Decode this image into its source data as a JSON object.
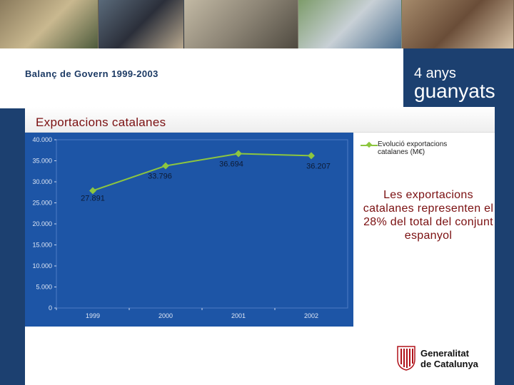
{
  "header": {
    "subtitle": "Balanç de Govern 1999-2003",
    "years_text": "4 anys",
    "won_text": "guanyats"
  },
  "photos": [
    {
      "name": "market-photo",
      "colors": [
        "#8a7a5c",
        "#c9b88f",
        "#4d5b3c"
      ]
    },
    {
      "name": "police-photo",
      "colors": [
        "#5a6a7a",
        "#2b2f3a",
        "#b9a98f"
      ]
    },
    {
      "name": "street-photo",
      "colors": [
        "#c2b9a4",
        "#8c8475",
        "#4f4a40"
      ]
    },
    {
      "name": "stadium-photo",
      "colors": [
        "#7d9c6a",
        "#c8d0d6",
        "#4b6e8e"
      ]
    },
    {
      "name": "students-photo",
      "colors": [
        "#a58a6b",
        "#6a4d38",
        "#d8c4a8"
      ]
    }
  ],
  "section": {
    "title": "Exportacions catalanes"
  },
  "chart_data": {
    "type": "line",
    "title": "Exportacions catalanes",
    "categories": [
      "1999",
      "2000",
      "2001",
      "2002"
    ],
    "series": [
      {
        "name": "Evolució exportacions catalanes (M€)",
        "values": [
          27891,
          33796,
          36694,
          36207
        ]
      }
    ],
    "value_labels": [
      "27.891",
      "33.796",
      "36.694",
      "36.207"
    ],
    "yticks": [
      0,
      5000,
      10000,
      15000,
      20000,
      25000,
      30000,
      35000,
      40000
    ],
    "ytick_labels": [
      "0",
      "5.000",
      "10.000",
      "15.000",
      "20.000",
      "25.000",
      "30.000",
      "35.000",
      "40.000"
    ],
    "ylim": [
      0,
      40000
    ],
    "grid": false,
    "legend_position": "right",
    "line_color": "#8dc63f"
  },
  "legend": {
    "label": "Evolució exportacions catalanes (M€)"
  },
  "callout": {
    "text": "Les exportacions catalanes representen el 28% del total del conjunt espanyol"
  },
  "logo": {
    "line1": "Generalitat",
    "line2": "de Catalunya"
  },
  "colors": {
    "navy": "#1c4070",
    "chart_bg": "#1d55a6",
    "accent_red": "#7a0f10"
  }
}
